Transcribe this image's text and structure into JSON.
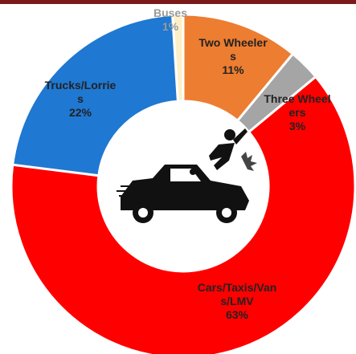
{
  "chart_data": {
    "type": "donut",
    "categories": [
      "Buses",
      "Two Wheelers",
      "Three Wheelers",
      "Cars/Taxis/Vans/LMV",
      "Trucks/Lorries"
    ],
    "values": [
      1,
      11,
      3,
      63,
      22
    ],
    "value_labels": [
      "1%",
      "11%",
      "3%",
      "63%",
      "22%"
    ],
    "colors": [
      "#fdf0c8",
      "#ed7d31",
      "#a5a5a5",
      "#ff0000",
      "#1f78d1"
    ]
  }
}
